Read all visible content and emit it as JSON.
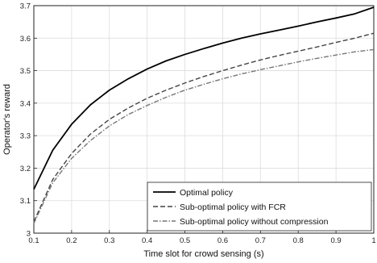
{
  "chart_data": {
    "type": "line",
    "xlabel": "Time slot for crowd sensing (s)",
    "ylabel": "Operator's reward",
    "xlim": [
      0.1,
      1.0
    ],
    "ylim": [
      3.0,
      3.7
    ],
    "xticks": [
      "0.1",
      "0.2",
      "0.3",
      "0.4",
      "0.5",
      "0.6",
      "0.7",
      "0.8",
      "0.9",
      "1"
    ],
    "yticks": [
      "3",
      "3.1",
      "3.2",
      "3.3",
      "3.4",
      "3.5",
      "3.6",
      "3.7"
    ],
    "grid": true,
    "legend_position": "bottom-right",
    "x": [
      0.1,
      0.15,
      0.2,
      0.25,
      0.3,
      0.35,
      0.4,
      0.45,
      0.5,
      0.55,
      0.6,
      0.65,
      0.7,
      0.75,
      0.8,
      0.85,
      0.9,
      0.95,
      1.0
    ],
    "series": [
      {
        "name": "Optimal policy",
        "color": "#000000",
        "style": "solid",
        "values": [
          3.135,
          3.255,
          3.335,
          3.395,
          3.44,
          3.475,
          3.505,
          3.53,
          3.55,
          3.568,
          3.585,
          3.6,
          3.613,
          3.625,
          3.637,
          3.65,
          3.662,
          3.675,
          3.695
        ]
      },
      {
        "name": "Sub-optimal policy with FCR",
        "color": "#444444",
        "style": "dashed",
        "values": [
          3.035,
          3.165,
          3.245,
          3.305,
          3.35,
          3.385,
          3.415,
          3.44,
          3.462,
          3.482,
          3.5,
          3.517,
          3.533,
          3.547,
          3.56,
          3.573,
          3.587,
          3.6,
          3.615
        ]
      },
      {
        "name": "Sub-optimal policy without compression",
        "color": "#777777",
        "style": "dashdot",
        "values": [
          3.03,
          3.155,
          3.23,
          3.285,
          3.33,
          3.365,
          3.393,
          3.418,
          3.44,
          3.458,
          3.475,
          3.49,
          3.503,
          3.515,
          3.527,
          3.538,
          3.548,
          3.558,
          3.565
        ]
      }
    ]
  }
}
